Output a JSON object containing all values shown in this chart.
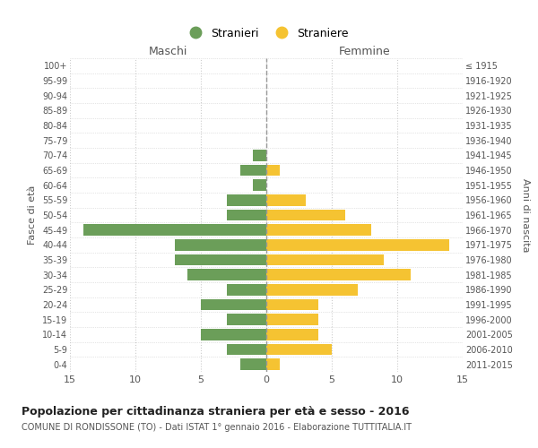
{
  "age_groups": [
    "0-4",
    "5-9",
    "10-14",
    "15-19",
    "20-24",
    "25-29",
    "30-34",
    "35-39",
    "40-44",
    "45-49",
    "50-54",
    "55-59",
    "60-64",
    "65-69",
    "70-74",
    "75-79",
    "80-84",
    "85-89",
    "90-94",
    "95-99",
    "100+"
  ],
  "birth_years": [
    "2011-2015",
    "2006-2010",
    "2001-2005",
    "1996-2000",
    "1991-1995",
    "1986-1990",
    "1981-1985",
    "1976-1980",
    "1971-1975",
    "1966-1970",
    "1961-1965",
    "1956-1960",
    "1951-1955",
    "1946-1950",
    "1941-1945",
    "1936-1940",
    "1931-1935",
    "1926-1930",
    "1921-1925",
    "1916-1920",
    "≤ 1915"
  ],
  "males": [
    2,
    3,
    5,
    3,
    5,
    3,
    6,
    7,
    7,
    14,
    3,
    3,
    1,
    2,
    1,
    0,
    0,
    0,
    0,
    0,
    0
  ],
  "females": [
    1,
    5,
    4,
    4,
    4,
    7,
    11,
    9,
    14,
    8,
    6,
    3,
    0,
    1,
    0,
    0,
    0,
    0,
    0,
    0,
    0
  ],
  "male_color": "#6b9e59",
  "female_color": "#f5c332",
  "grid_color": "#cccccc",
  "title": "Popolazione per cittadinanza straniera per età e sesso - 2016",
  "subtitle": "COMUNE DI RONDISSONE (TO) - Dati ISTAT 1° gennaio 2016 - Elaborazione TUTTITALIA.IT",
  "legend_stranieri": "Stranieri",
  "legend_straniere": "Straniere",
  "xlabel_left": "Maschi",
  "xlabel_right": "Femmine",
  "ylabel_left": "Fasce di età",
  "ylabel_right": "Anni di nascita",
  "xlim": 15
}
